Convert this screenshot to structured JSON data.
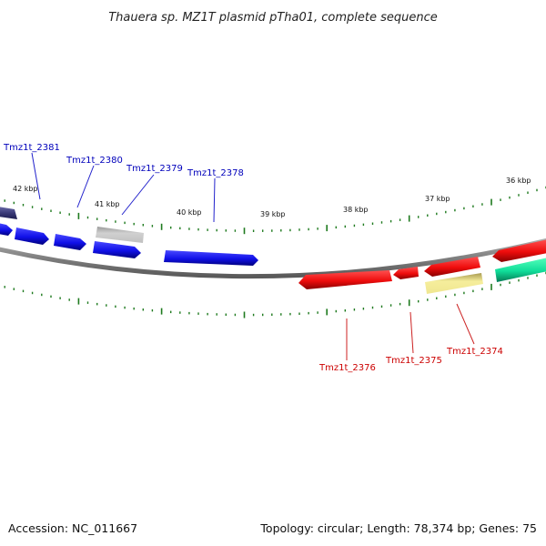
{
  "title": "Thauera sp. MZ1T plasmid pTha01, complete sequence",
  "footer": {
    "accession": "Accession: NC_011667",
    "topology": "Topology: circular; Length: 78,374 bp; Genes: 75"
  },
  "colors": {
    "forward_gene": "#1a1aee",
    "reverse_gene": "#ee1111",
    "pseudo_gene": "#b8b8b8",
    "rna_gene": "#f2ea98",
    "other_gene": "#11dd99",
    "dark_gene": "#3a3a78",
    "backbone": "#808080",
    "tick": "#1e7a1e",
    "forward_label": "#0000bb",
    "reverse_label": "#cc0000"
  },
  "kbp_labels": [
    "42 kbp",
    "41 kbp",
    "40 kbp",
    "39 kbp",
    "38 kbp",
    "37 kbp",
    "36 kbp"
  ],
  "gene_labels": {
    "forward": [
      "Tmz1t_2381",
      "Tmz1t_2380",
      "Tmz1t_2379",
      "Tmz1t_2378"
    ],
    "reverse": [
      "Tmz1t_2376",
      "Tmz1t_2375",
      "Tmz1t_2374"
    ]
  }
}
